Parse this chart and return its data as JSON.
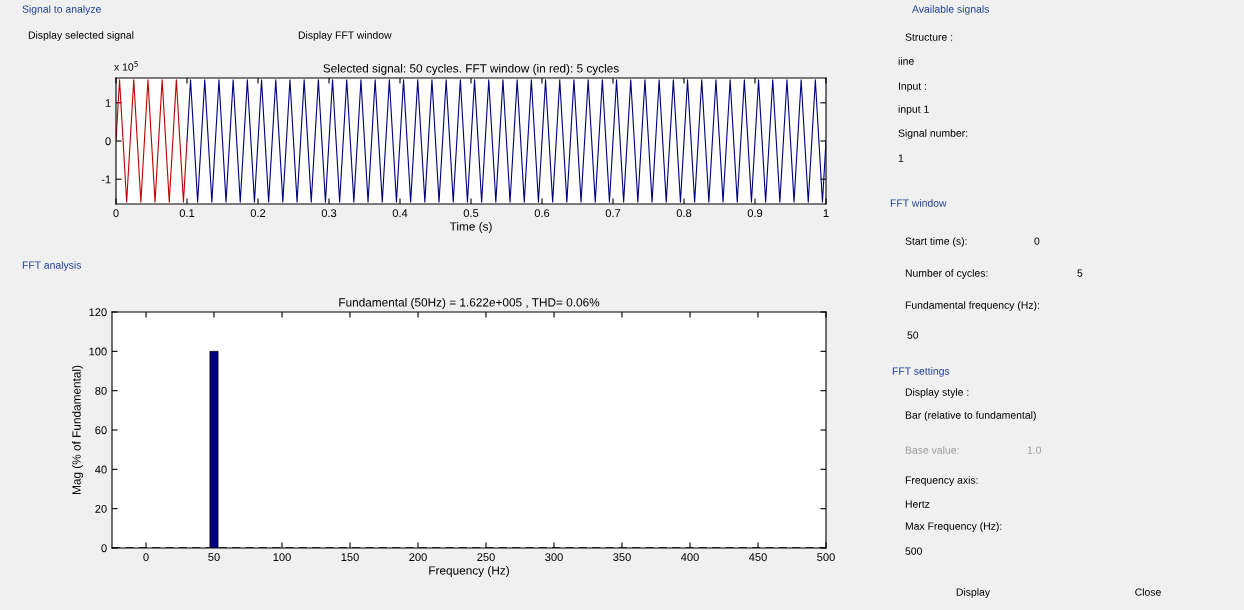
{
  "chart_data": [
    {
      "type": "line",
      "title": "Selected signal: 50 cycles. FFT window (in red): 5 cycles",
      "xlabel": "Time (s)",
      "annotations": [
        "Signal to analyze",
        "Display selected signal",
        "Display FFT window",
        "x 10$^{5}$"
      ],
      "xlim": [
        0,
        1
      ],
      "ylim": [
        -1.65,
        1.65
      ],
      "xticks": [
        0,
        0.1,
        0.2,
        0.3,
        0.4,
        0.5,
        0.6,
        0.7,
        0.8,
        0.9,
        1
      ],
      "yticks": [
        -1,
        0,
        1
      ],
      "series": [
        {
          "color": "#00007f",
          "x": [
            0.1,
            0.105,
            0.115,
            0.125,
            0.135,
            0.145,
            0.155,
            0.165,
            0.175,
            0.185,
            0.195,
            0.205,
            0.215,
            0.225,
            0.235,
            0.245,
            0.255,
            0.265,
            0.275,
            0.285,
            0.295,
            0.305,
            0.315,
            0.325,
            0.335,
            0.345,
            0.355,
            0.365,
            0.375,
            0.385,
            0.395,
            0.405,
            0.415,
            0.425,
            0.435,
            0.445,
            0.455,
            0.465,
            0.475,
            0.485,
            0.495,
            0.505,
            0.515,
            0.525,
            0.535,
            0.545,
            0.555,
            0.565,
            0.575,
            0.585,
            0.595,
            0.605,
            0.615,
            0.625,
            0.635,
            0.645,
            0.655,
            0.665,
            0.675,
            0.685,
            0.695,
            0.705,
            0.715,
            0.725,
            0.735,
            0.745,
            0.755,
            0.765,
            0.775,
            0.785,
            0.795,
            0.805,
            0.815,
            0.825,
            0.835,
            0.845,
            0.855,
            0.865,
            0.875,
            0.885,
            0.895,
            0.905,
            0.915,
            0.925,
            0.935,
            0.945,
            0.955,
            0.965,
            0.975,
            0.985,
            0.995,
            1
          ],
          "values": [
            0,
            1.6,
            -1.6,
            1.6,
            -1.6,
            1.6,
            -1.6,
            1.6,
            -1.6,
            1.6,
            -1.6,
            1.6,
            -1.6,
            1.6,
            -1.6,
            1.6,
            -1.6,
            1.6,
            -1.6,
            1.6,
            -1.6,
            1.6,
            -1.6,
            1.6,
            -1.6,
            1.6,
            -1.6,
            1.6,
            -1.6,
            1.6,
            -1.6,
            1.6,
            -1.6,
            1.6,
            -1.6,
            1.6,
            -1.6,
            1.6,
            -1.6,
            1.6,
            -1.6,
            1.6,
            -1.6,
            1.6,
            -1.6,
            1.6,
            -1.6,
            1.6,
            -1.6,
            1.6,
            -1.6,
            1.6,
            -1.6,
            1.6,
            -1.6,
            1.6,
            -1.6,
            1.6,
            -1.6,
            1.6,
            -1.6,
            1.6,
            -1.6,
            1.6,
            -1.6,
            1.6,
            -1.6,
            1.6,
            -1.6,
            1.6,
            -1.6,
            1.6,
            -1.6,
            1.6,
            -1.6,
            1.6,
            -1.6,
            1.6,
            -1.6,
            1.6,
            -1.6,
            1.6,
            -1.6,
            1.6,
            -1.6,
            1.6,
            -1.6,
            1.6,
            -1.6,
            1.6,
            -1.6,
            0
          ]
        },
        {
          "color": "#c00000",
          "x": [
            0,
            0.005,
            0.015,
            0.025,
            0.035,
            0.045,
            0.055,
            0.065,
            0.075,
            0.085,
            0.095,
            0.1
          ],
          "values": [
            0,
            1.6,
            -1.6,
            1.6,
            -1.6,
            1.6,
            -1.6,
            1.6,
            -1.6,
            1.6,
            -1.6,
            0
          ]
        }
      ]
    },
    {
      "type": "bar",
      "title": "Fundamental (50Hz) = 1.622e+005 , THD= 0.06%",
      "xlabel": "Frequency (Hz)",
      "ylabel": "Mag (% of Fundamental)",
      "annotations": [
        "FFT analysis"
      ],
      "x": [
        50
      ],
      "values": [
        100
      ],
      "color": "#00007f",
      "xlim": [
        -25,
        500
      ],
      "ylim": [
        0,
        120
      ],
      "xticks": [
        0,
        50,
        100,
        150,
        200,
        250,
        300,
        350,
        400,
        450,
        500
      ],
      "yticks": [
        0,
        20,
        40,
        60,
        80,
        100,
        120
      ],
      "ref_lines": [
        {
          "axis": "y",
          "value": 0,
          "color": "#000000",
          "line_style": "dashed"
        }
      ]
    },
    {
      "type": "other",
      "annotations": [
        "Available signals",
        "Structure :",
        "iine",
        "Input :",
        "input 1",
        "Signal number:",
        "1",
        "FFT window",
        "Start time (s):",
        "0",
        "Number of cycles:",
        "5",
        "Fundamental frequency (Hz):",
        "50",
        "FFT settings",
        "Display style :",
        "Bar (relative to fundamental)",
        "Base value:",
        "1.0",
        "Frequency axis:",
        "Hertz",
        "Max Frequency (Hz):",
        "500",
        "Display",
        "Close"
      ]
    }
  ]
}
